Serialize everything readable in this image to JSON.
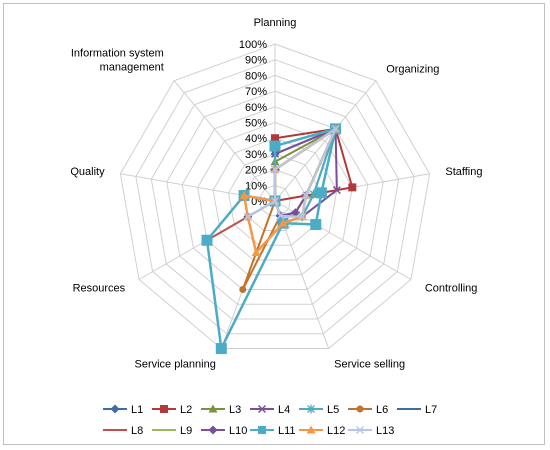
{
  "chart_data": {
    "type": "radar",
    "categories": [
      "Planning",
      "Organizing",
      "Staffing",
      "Controlling",
      "Service selling",
      "Service planning",
      "Resources",
      "Quality",
      "Information system management"
    ],
    "r_ticks": [
      "0%",
      "10%",
      "20%",
      "30%",
      "40%",
      "50%",
      "60%",
      "70%",
      "80%",
      "90%",
      "100%"
    ],
    "rlim": [
      0,
      100
    ],
    "grid": true,
    "legend_position": "bottom",
    "series": [
      {
        "name": "L1",
        "color": "#3a6ea5",
        "marker": "diamond",
        "values": [
          30,
          60,
          30,
          30,
          15,
          0,
          0,
          0,
          0
        ]
      },
      {
        "name": "L2",
        "color": "#b03a3a",
        "marker": "square",
        "values": [
          40,
          60,
          50,
          0,
          0,
          0,
          0,
          0,
          0
        ]
      },
      {
        "name": "L3",
        "color": "#77933c",
        "marker": "triangle",
        "values": [
          25,
          60,
          25,
          20,
          15,
          0,
          0,
          0,
          0
        ]
      },
      {
        "name": "L4",
        "color": "#7a4f9a",
        "marker": "x",
        "values": [
          30,
          60,
          40,
          20,
          10,
          0,
          0,
          0,
          0
        ]
      },
      {
        "name": "L5",
        "color": "#4bacc6",
        "marker": "asterisk",
        "values": [
          20,
          60,
          25,
          20,
          15,
          0,
          0,
          0,
          0
        ]
      },
      {
        "name": "L6",
        "color": "#c0742a",
        "marker": "circle",
        "values": [
          20,
          60,
          20,
          20,
          10,
          60,
          0,
          0,
          0
        ]
      },
      {
        "name": "L7",
        "color": "#3a6ea5",
        "marker": "dash",
        "values": [
          20,
          60,
          20,
          15,
          10,
          0,
          0,
          0,
          0
        ]
      },
      {
        "name": "L8",
        "color": "#c0504d",
        "marker": "none",
        "values": [
          20,
          60,
          20,
          15,
          10,
          0,
          50,
          0,
          0
        ]
      },
      {
        "name": "L9",
        "color": "#9bbb59",
        "marker": "none",
        "values": [
          20,
          60,
          20,
          15,
          10,
          0,
          0,
          0,
          0
        ]
      },
      {
        "name": "L10",
        "color": "#7a4f9a",
        "marker": "diamond",
        "values": [
          20,
          60,
          20,
          15,
          10,
          0,
          20,
          0,
          0
        ]
      },
      {
        "name": "L11",
        "color": "#4bacc6",
        "marker": "square",
        "values": [
          35,
          60,
          30,
          30,
          15,
          100,
          50,
          20,
          0
        ]
      },
      {
        "name": "L12",
        "color": "#f79646",
        "marker": "triangle",
        "values": [
          20,
          60,
          20,
          20,
          15,
          35,
          20,
          20,
          0
        ]
      },
      {
        "name": "L13",
        "color": "#b4c7e7",
        "marker": "x",
        "values": [
          20,
          60,
          20,
          20,
          10,
          0,
          20,
          0,
          0
        ]
      }
    ]
  }
}
